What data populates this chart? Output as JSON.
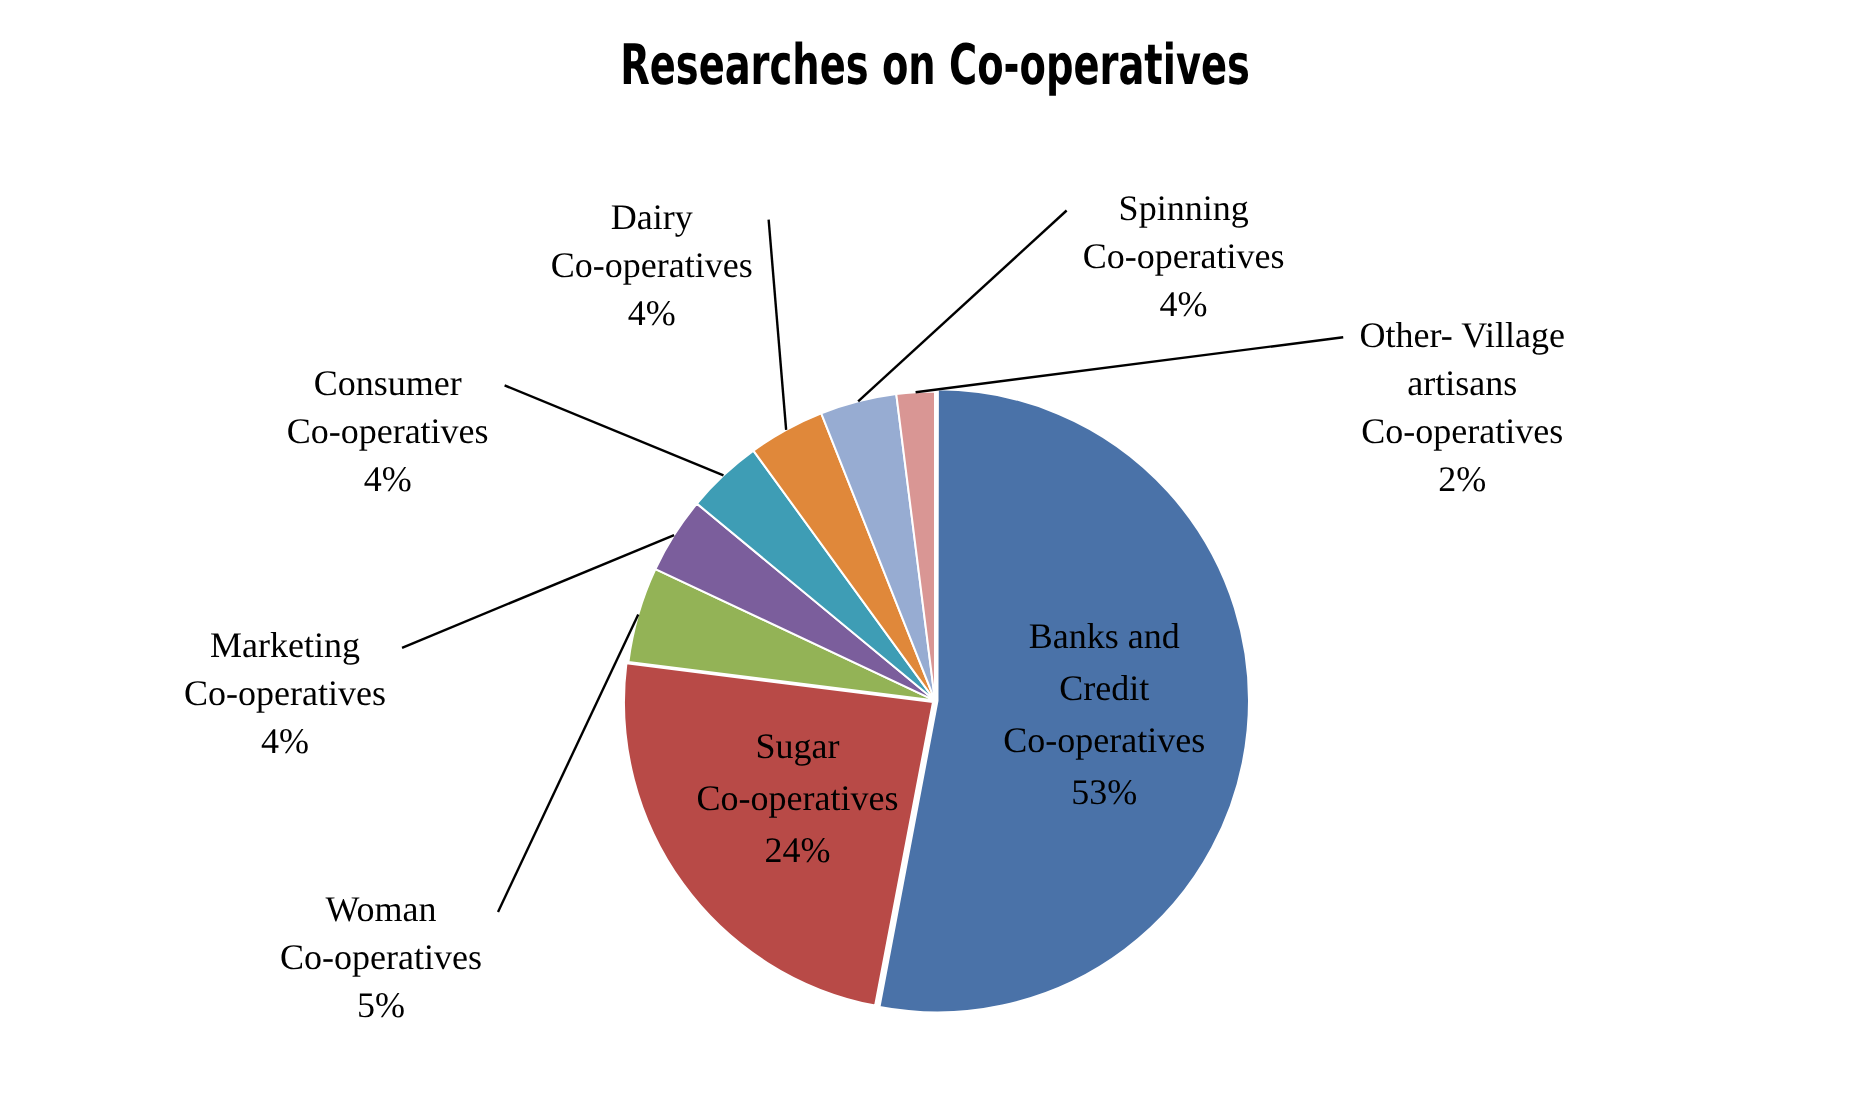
{
  "chart_data": {
    "type": "pie",
    "title": "Researches on Co-operatives",
    "categories": [
      "Banks and Credit Co-operatives",
      "Sugar Co-operatives",
      "Woman Co-operatives",
      "Marketing Co-operatives",
      "Consumer Co-operatives",
      "Dairy Co-operatives",
      "Spinning Co-operatives",
      "Other- Village artisans Co-operatives"
    ],
    "values": [
      53,
      24,
      5,
      4,
      4,
      4,
      4,
      2
    ],
    "colors": [
      "#4a72a8",
      "#b84a47",
      "#93b356",
      "#7b5e9c",
      "#3e9db5",
      "#e0883a",
      "#97acd2",
      "#d99694"
    ],
    "value_labels": [
      "53%",
      "24%",
      "5%",
      "4%",
      "4%",
      "4%",
      "4%",
      "2%"
    ],
    "legend": false
  }
}
